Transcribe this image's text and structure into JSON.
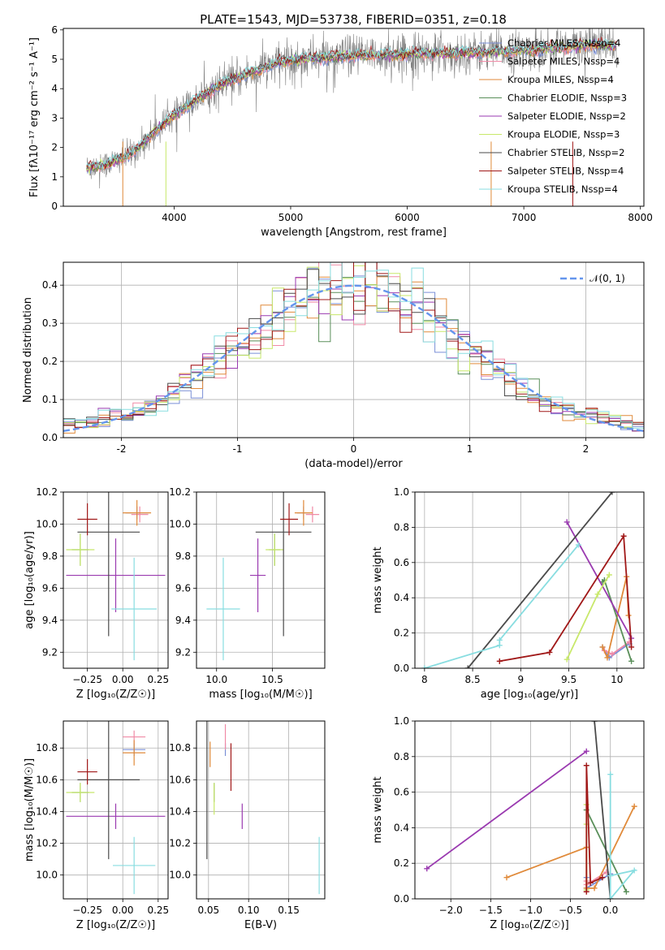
{
  "figure": {
    "title": "PLATE=1543, MJD=53738, FIBERID=0351, z=0.18"
  },
  "colors": {
    "chabrier_miles": "#7a8fd6",
    "salpeter_miles": "#f08aa6",
    "kroupa_miles": "#e08a3a",
    "chabrier_elodie": "#5a8f5a",
    "salpeter_elodie": "#9a3ab0",
    "kroupa_elodie": "#c8e86a",
    "chabrier_stelib": "#4a4a4a",
    "salpeter_stelib": "#a01818",
    "kroupa_stelib": "#88dde0",
    "data": "#808080",
    "normal": "#6495ed"
  },
  "chart_data": [
    {
      "id": "spectrum",
      "type": "line",
      "title": "PLATE=1543, MJD=53738, FIBERID=0351, z=0.18",
      "xlabel": "wavelength [Angstrom, rest frame]",
      "ylabel": "Flux [fλ10⁻¹⁷ erg cm⁻² s⁻¹ A⁻¹]",
      "xlim": [
        3050,
        8030
      ],
      "ylim": [
        0,
        6.05
      ],
      "xticks": [
        4000,
        5000,
        6000,
        7000,
        8000
      ],
      "yticks": [
        0,
        1,
        2,
        3,
        4,
        5,
        6
      ],
      "legend_position": "upper-right",
      "legend": [
        "Chabrier MILES, N_SSP=4",
        "Salpeter MILES, N_SSP=4",
        "Kroupa MILES, N_SSP=4",
        "Chabrier ELODIE, N_SSP=3",
        "Salpeter ELODIE, N_SSP=2",
        "Kroupa ELODIE, N_SSP=3",
        "Chabrier STELIB, N_SSP=2",
        "Salpeter STELIB, N_SSP=4",
        "Kroupa STELIB, N_SSP=4"
      ],
      "continuum_model": {
        "x": [
          3250,
          3400,
          3550,
          3700,
          3850,
          4000,
          4150,
          4300,
          4500,
          4700,
          4900,
          5200,
          5500,
          5800,
          6100,
          6400,
          6700,
          7000,
          7300,
          7600,
          7800
        ],
        "y": [
          1.3,
          1.4,
          1.6,
          2.0,
          2.6,
          3.1,
          3.5,
          3.9,
          4.3,
          4.6,
          4.9,
          5.05,
          5.1,
          5.15,
          5.2,
          5.2,
          5.25,
          5.3,
          5.4,
          5.5,
          5.45
        ]
      }
    },
    {
      "id": "residuals",
      "type": "histogram",
      "xlabel": "(data-model)/error",
      "ylabel": "Normed distribution",
      "xlim": [
        -2.5,
        2.5
      ],
      "ylim": [
        0,
        0.46
      ],
      "xticks": [
        -2,
        -1,
        0,
        1,
        2
      ],
      "yticks": [
        0.0,
        0.1,
        0.2,
        0.3,
        0.4
      ],
      "grid": true,
      "legend": [
        "𝒩(0, 1)"
      ],
      "bin_width": 0.1
    },
    {
      "id": "z-age",
      "type": "errorbar",
      "xlabel": "Z [log₁₀(Z/Z☉)]",
      "ylabel": "age  [log₁₀(age/yr)]",
      "xlim": [
        -0.42,
        0.32
      ],
      "ylim": [
        9.1,
        10.2
      ],
      "xticks": [
        -0.25,
        0.0,
        0.25
      ],
      "xtick_labels": [
        "−0.25",
        "0.00",
        "0.25"
      ],
      "yticks": [
        9.2,
        9.4,
        9.6,
        9.8,
        10.0,
        10.2
      ],
      "grid": true,
      "points": [
        {
          "model": "chabrier_miles",
          "x": 0.1,
          "xerr": 0.08,
          "y": 10.07,
          "yerr": 0.04
        },
        {
          "model": "salpeter_miles",
          "x": 0.12,
          "xerr": 0.06,
          "y": 10.06,
          "yerr": 0.05
        },
        {
          "model": "kroupa_miles",
          "x": 0.1,
          "xerr": 0.1,
          "y": 10.07,
          "yerr": 0.08
        },
        {
          "model": "chabrier_elodie",
          "x": -0.3,
          "xerr": 0.06,
          "y": 9.84,
          "yerr": 0.1
        },
        {
          "model": "salpeter_elodie",
          "x": -0.05,
          "xerr": 0.35,
          "y": 9.68,
          "yerr": 0.23
        },
        {
          "model": "kroupa_elodie",
          "x": -0.3,
          "xerr": 0.1,
          "y": 9.84,
          "yerr": 0.1
        },
        {
          "model": "chabrier_stelib",
          "x": -0.1,
          "xerr": 0.22,
          "y": 9.95,
          "yerr": 0.65
        },
        {
          "model": "salpeter_stelib",
          "x": -0.25,
          "xerr": 0.07,
          "y": 10.03,
          "yerr": 0.1
        },
        {
          "model": "kroupa_stelib",
          "x": 0.08,
          "xerr": 0.16,
          "y": 9.47,
          "yerr": 0.32
        }
      ]
    },
    {
      "id": "mass-age",
      "type": "errorbar",
      "xlabel": "mass [log₁₀(M/M☉)]",
      "ylabel": "",
      "xlim": [
        9.82,
        10.97
      ],
      "ylim": [
        9.1,
        10.2
      ],
      "xticks": [
        10.0,
        10.5
      ],
      "xtick_labels": [
        "10.0",
        "10.5"
      ],
      "yticks": [
        9.2,
        9.4,
        9.6,
        9.8,
        10.0,
        10.2
      ],
      "grid": true,
      "points": [
        {
          "model": "chabrier_miles",
          "x": 10.78,
          "xerr": 0.06,
          "y": 10.07,
          "yerr": 0.04
        },
        {
          "model": "salpeter_miles",
          "x": 10.86,
          "xerr": 0.06,
          "y": 10.06,
          "yerr": 0.05
        },
        {
          "model": "kroupa_miles",
          "x": 10.78,
          "xerr": 0.08,
          "y": 10.07,
          "yerr": 0.08
        },
        {
          "model": "chabrier_elodie",
          "x": 10.52,
          "xerr": 0.05,
          "y": 9.84,
          "yerr": 0.1
        },
        {
          "model": "salpeter_elodie",
          "x": 10.37,
          "xerr": 0.07,
          "y": 9.68,
          "yerr": 0.23
        },
        {
          "model": "kroupa_elodie",
          "x": 10.52,
          "xerr": 0.08,
          "y": 9.84,
          "yerr": 0.1
        },
        {
          "model": "chabrier_stelib",
          "x": 10.6,
          "xerr": 0.25,
          "y": 9.95,
          "yerr": 0.65
        },
        {
          "model": "salpeter_stelib",
          "x": 10.65,
          "xerr": 0.08,
          "y": 10.03,
          "yerr": 0.1
        },
        {
          "model": "kroupa_stelib",
          "x": 10.06,
          "xerr": 0.15,
          "y": 9.47,
          "yerr": 0.32
        }
      ]
    },
    {
      "id": "age-weight",
      "type": "line",
      "xlabel": "age  [log₁₀(age/yr)]",
      "ylabel": "mass weight",
      "xlim": [
        7.9,
        10.28
      ],
      "ylim": [
        0,
        1.0
      ],
      "xticks": [
        8.0,
        8.5,
        9.0,
        9.5,
        10.0
      ],
      "yticks": [
        0.0,
        0.2,
        0.4,
        0.6,
        0.8,
        1.0
      ],
      "grid": true,
      "series": [
        {
          "model": "chabrier_miles",
          "x": [
            9.85,
            9.92,
            10.13
          ],
          "y": [
            0.12,
            0.06,
            0.14
          ]
        },
        {
          "model": "salpeter_miles",
          "x": [
            9.87,
            9.95,
            10.13
          ],
          "y": [
            0.1,
            0.08,
            0.15
          ]
        },
        {
          "model": "kroupa_miles",
          "x": [
            9.85,
            9.9,
            10.1,
            10.12
          ],
          "y": [
            0.12,
            0.06,
            0.52,
            0.3
          ]
        },
        {
          "model": "chabrier_elodie",
          "x": [
            9.85,
            9.87,
            10.15
          ],
          "y": [
            0.49,
            0.5,
            0.04
          ]
        },
        {
          "model": "salpeter_elodie",
          "x": [
            9.48,
            10.15
          ],
          "y": [
            0.83,
            0.17
          ]
        },
        {
          "model": "kroupa_elodie",
          "x": [
            9.48,
            9.8,
            9.92
          ],
          "y": [
            0.05,
            0.42,
            0.53
          ]
        },
        {
          "model": "chabrier_stelib",
          "x": [
            8.45,
            9.95
          ],
          "y": [
            0.0,
            1.0
          ]
        },
        {
          "model": "salpeter_stelib",
          "x": [
            8.78,
            9.3,
            10.07,
            10.15
          ],
          "y": [
            0.04,
            0.09,
            0.75,
            0.12
          ]
        },
        {
          "model": "kroupa_stelib",
          "x": [
            8.0,
            8.78,
            8.78,
            9.6
          ],
          "y": [
            0.0,
            0.13,
            0.16,
            0.7
          ]
        }
      ]
    },
    {
      "id": "z-mass",
      "type": "errorbar",
      "xlabel": "Z [log₁₀(Z/Z☉)]",
      "ylabel": "mass [log₁₀(M/M☉)]",
      "xlim": [
        -0.42,
        0.32
      ],
      "ylim": [
        9.85,
        10.97
      ],
      "xticks": [
        -0.25,
        0.0,
        0.25
      ],
      "xtick_labels": [
        "−0.25",
        "0.00",
        "0.25"
      ],
      "yticks": [
        10.0,
        10.2,
        10.4,
        10.6,
        10.8
      ],
      "grid": true,
      "points": [
        {
          "model": "chabrier_miles",
          "x": 0.08,
          "xerr": 0.08,
          "y": 10.79,
          "yerr": 0.04
        },
        {
          "model": "salpeter_miles",
          "x": 0.08,
          "xerr": 0.08,
          "y": 10.87,
          "yerr": 0.04
        },
        {
          "model": "kroupa_miles",
          "x": 0.08,
          "xerr": 0.08,
          "y": 10.77,
          "yerr": 0.08
        },
        {
          "model": "chabrier_elodie",
          "x": -0.3,
          "xerr": 0.06,
          "y": 10.52,
          "yerr": 0.06
        },
        {
          "model": "salpeter_elodie",
          "x": -0.05,
          "xerr": 0.35,
          "y": 10.37,
          "yerr": 0.08
        },
        {
          "model": "kroupa_elodie",
          "x": -0.3,
          "xerr": 0.1,
          "y": 10.52,
          "yerr": 0.06
        },
        {
          "model": "chabrier_stelib",
          "x": -0.1,
          "xerr": 0.22,
          "y": 10.6,
          "yerr": 0.5
        },
        {
          "model": "salpeter_stelib",
          "x": -0.25,
          "xerr": 0.07,
          "y": 10.65,
          "yerr": 0.08
        },
        {
          "model": "kroupa_stelib",
          "x": 0.08,
          "xerr": 0.15,
          "y": 10.06,
          "yerr": 0.18
        }
      ]
    },
    {
      "id": "ebv-mass",
      "type": "errorbar",
      "xlabel": "E(B-V)",
      "ylabel": "",
      "xlim": [
        0.035,
        0.195
      ],
      "ylim": [
        9.85,
        10.97
      ],
      "xticks": [
        0.05,
        0.1,
        0.15
      ],
      "xtick_labels": [
        "0.05",
        "0.10",
        "0.15"
      ],
      "yticks": [
        10.0,
        10.2,
        10.4,
        10.6,
        10.8
      ],
      "grid": true,
      "points": [
        {
          "model": "chabrier_miles",
          "x": 0.071,
          "xerr": 0,
          "y": 10.79,
          "yerr": 0.04
        },
        {
          "model": "salpeter_miles",
          "x": 0.071,
          "xerr": 0,
          "y": 10.87,
          "yerr": 0.08
        },
        {
          "model": "kroupa_miles",
          "x": 0.052,
          "xerr": 0,
          "y": 10.76,
          "yerr": 0.08
        },
        {
          "model": "chabrier_elodie",
          "x": 0.057,
          "xerr": 0,
          "y": 10.52,
          "yerr": 0.06
        },
        {
          "model": "salpeter_elodie",
          "x": 0.092,
          "xerr": 0,
          "y": 10.37,
          "yerr": 0.08
        },
        {
          "model": "kroupa_elodie",
          "x": 0.057,
          "xerr": 0,
          "y": 10.48,
          "yerr": 0.1
        },
        {
          "model": "chabrier_stelib",
          "x": 0.048,
          "xerr": 0,
          "y": 10.6,
          "yerr": 0.5
        },
        {
          "model": "salpeter_stelib",
          "x": 0.078,
          "xerr": 0,
          "y": 10.68,
          "yerr": 0.15
        },
        {
          "model": "kroupa_stelib",
          "x": 0.188,
          "xerr": 0,
          "y": 10.06,
          "yerr": 0.18
        }
      ]
    },
    {
      "id": "z-weight",
      "type": "line",
      "xlabel": "Z [log₁₀(Z/Z☉)]",
      "ylabel": "mass weight",
      "xlim": [
        -2.45,
        0.42
      ],
      "ylim": [
        0,
        1.0
      ],
      "xticks": [
        -2.0,
        -1.5,
        -1.0,
        -0.5,
        0.0
      ],
      "xtick_labels": [
        "−2.0",
        "−1.5",
        "−1.0",
        "−0.5",
        "0.0"
      ],
      "yticks": [
        0.0,
        0.2,
        0.4,
        0.6,
        0.8,
        1.0
      ],
      "grid": true,
      "series": [
        {
          "model": "chabrier_miles",
          "x": [
            -0.3,
            -0.3,
            0.0
          ],
          "y": [
            0.12,
            0.06,
            0.14
          ]
        },
        {
          "model": "salpeter_miles",
          "x": [
            -0.3,
            -0.3,
            -0.05
          ],
          "y": [
            0.1,
            0.08,
            0.15
          ]
        },
        {
          "model": "kroupa_miles",
          "x": [
            -1.3,
            -0.3,
            -0.3,
            -0.2,
            0.3
          ],
          "y": [
            0.12,
            0.29,
            0.06,
            0.06,
            0.52
          ]
        },
        {
          "model": "chabrier_elodie",
          "x": [
            -0.3,
            0.2
          ],
          "y": [
            0.5,
            0.04
          ]
        },
        {
          "model": "salpeter_elodie",
          "x": [
            -2.3,
            -0.3
          ],
          "y": [
            0.17,
            0.83
          ]
        },
        {
          "model": "kroupa_elodie",
          "x": [
            -0.3,
            -0.3,
            -0.3
          ],
          "y": [
            0.05,
            0.42,
            0.53
          ]
        },
        {
          "model": "chabrier_stelib",
          "x": [
            -0.2,
            -0.0
          ],
          "y": [
            1.0,
            0.0
          ]
        },
        {
          "model": "salpeter_stelib",
          "x": [
            -0.3,
            -0.3,
            -0.25,
            -0.1
          ],
          "y": [
            0.04,
            0.75,
            0.09,
            0.12
          ]
        },
        {
          "model": "kroupa_stelib",
          "x": [
            0.0,
            0.0,
            0.3,
            0.0
          ],
          "y": [
            0.7,
            0.0,
            0.16,
            0.13
          ]
        }
      ]
    }
  ]
}
